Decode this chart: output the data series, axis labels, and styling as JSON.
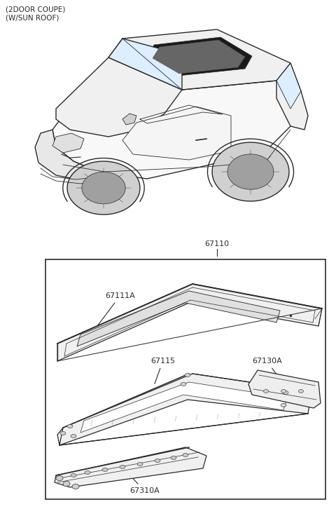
{
  "title_line1": "(2DOOR COUPE)",
  "title_line2": "(W/SUN ROOF)",
  "bg_color": "#ffffff",
  "line_color": "#2a2a2a",
  "text_color": "#2a2a2a",
  "figsize": [
    4.8,
    7.26
  ],
  "dpi": 100,
  "label_67110": "67110",
  "label_67111A": "67111A",
  "label_67115": "67115",
  "label_67130A": "67130A",
  "label_67310A": "67310A"
}
